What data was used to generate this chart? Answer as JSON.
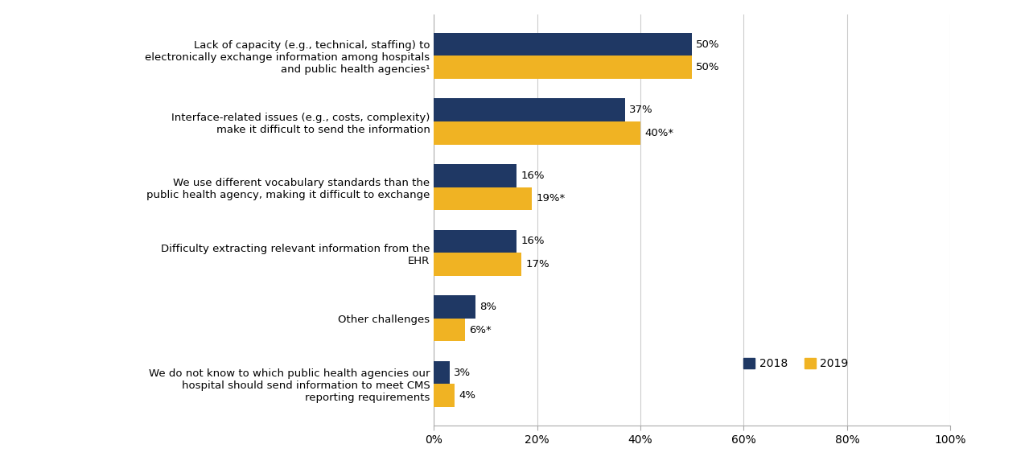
{
  "categories": [
    "Lack of capacity (e.g., technical, staffing) to\nelectronically exchange information among hospitals\nand public health agencies¹",
    "Interface-related issues (e.g., costs, complexity)\nmake it difficult to send the information",
    "We use different vocabulary standards than the\npublic health agency, making it difficult to exchange",
    "Difficulty extracting relevant information from the\nEHR",
    "Other challenges",
    "We do not know to which public health agencies our\nhospital should send information to meet CMS\nreporting requirements"
  ],
  "values_2018": [
    50,
    37,
    16,
    16,
    8,
    3
  ],
  "values_2019": [
    50,
    40,
    19,
    17,
    6,
    4
  ],
  "labels_2018": [
    "50%",
    "37%",
    "16%",
    "16%",
    "8%",
    "3%"
  ],
  "labels_2019": [
    "50%",
    "40%*",
    "19%*",
    "17%",
    "6%*",
    "4%"
  ],
  "color_2018": "#1f3864",
  "color_2019": "#f0b323",
  "bar_height": 0.35,
  "xlim": [
    0,
    100
  ],
  "xticks": [
    0,
    20,
    40,
    60,
    80,
    100
  ],
  "xticklabels": [
    "0%",
    "20%",
    "40%",
    "60%",
    "80%",
    "100%"
  ],
  "legend_labels": [
    "2018",
    "2019"
  ],
  "background_color": "#ffffff",
  "fontsize_labels": 9.5,
  "fontsize_ticks": 10,
  "fontsize_category": 9.5
}
